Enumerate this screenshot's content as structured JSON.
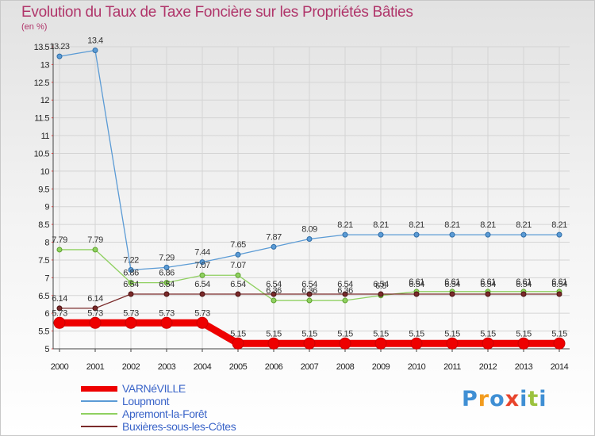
{
  "chart_data": {
    "type": "line",
    "title": "Evolution du Taux de Taxe Foncière sur les Propriétés Bâties",
    "ylabel": "(en %)",
    "xlabel": "",
    "x": [
      "2000",
      "2001",
      "2002",
      "2003",
      "2004",
      "2005",
      "2006",
      "2007",
      "2008",
      "2009",
      "2010",
      "2011",
      "2012",
      "2013",
      "2014"
    ],
    "ylim": [
      5,
      13.5
    ],
    "yticks": [
      "5",
      "5.5",
      "6",
      "6.5",
      "7",
      "7.5",
      "8",
      "8.5",
      "9",
      "9.5",
      "10",
      "10.5",
      "11",
      "11.5",
      "12",
      "12.5",
      "13",
      "13.5"
    ],
    "series": [
      {
        "name": "VARNéVILLE",
        "color": "#ee0000",
        "values": [
          5.73,
          5.73,
          5.73,
          5.73,
          5.73,
          5.15,
          5.15,
          5.15,
          5.15,
          5.15,
          5.15,
          5.15,
          5.15,
          5.15,
          5.15
        ],
        "labels": [
          "5.73",
          "5.73",
          "5.73",
          "5.73",
          "5.73",
          "5.15",
          "5.15",
          "5.15",
          "5.15",
          "5.15",
          "5.15",
          "5.15",
          "5.15",
          "5.15",
          "5.15"
        ]
      },
      {
        "name": "Loupmont",
        "color": "#5b9bd5",
        "values": [
          13.23,
          13.4,
          7.22,
          7.29,
          7.44,
          7.65,
          7.87,
          8.09,
          8.21,
          8.21,
          8.21,
          8.21,
          8.21,
          8.21,
          8.21
        ],
        "labels": [
          "13.23",
          "13.4",
          "7.22",
          "7.29",
          "7.44",
          "7.65",
          "7.87",
          "8.09",
          "8.21",
          "8.21",
          "8.21",
          "8.21",
          "8.21",
          "8.21",
          "8.21"
        ]
      },
      {
        "name": "Apremont-la-Forêt",
        "color": "#8fd060",
        "values": [
          7.79,
          7.79,
          6.86,
          6.86,
          7.07,
          7.07,
          6.36,
          6.36,
          6.36,
          6.5,
          6.61,
          6.61,
          6.61,
          6.61,
          6.61
        ],
        "labels": [
          "7.79",
          "7.79",
          "6.86",
          "6.86",
          "7.07",
          "7.07",
          "6.36",
          "6.36",
          "6.36",
          "6.5",
          "6.61",
          "6.61",
          "6.61",
          "6.61",
          "6.61"
        ]
      },
      {
        "name": "Buxières-sous-les-Côtes",
        "color": "#7a2a2a",
        "values": [
          6.14,
          6.14,
          6.54,
          6.54,
          6.54,
          6.54,
          6.54,
          6.54,
          6.54,
          6.54,
          6.54,
          6.54,
          6.54,
          6.54,
          6.54
        ],
        "labels": [
          "6.14",
          "6.14",
          "6.54",
          "6.54",
          "6.54",
          "6.54",
          "6.54",
          "6.54",
          "6.54",
          "6.54",
          "6.54",
          "6.54",
          "6.54",
          "6.54",
          "6.54"
        ]
      }
    ],
    "grid": true,
    "legend_position": "bottom-left"
  },
  "logo": {
    "letters": [
      "P",
      "r",
      "o",
      "x",
      "i",
      "t",
      "i"
    ],
    "colors": [
      "#3f8fd4",
      "#f29c1f",
      "#3f8fd4",
      "#e8442c",
      "#3f8fd4",
      "#9cc23e",
      "#3f8fd4"
    ]
  }
}
